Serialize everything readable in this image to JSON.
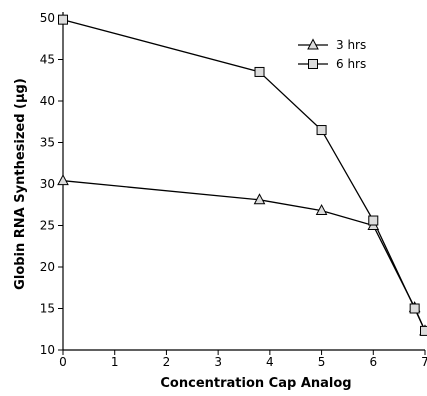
{
  "chart_data": {
    "type": "line",
    "title": "",
    "xlabel": "Concentration Cap Analog",
    "ylabel": "Globin RNA Synthesized (µg)",
    "xlim": [
      0,
      7
    ],
    "ylim": [
      10,
      50
    ],
    "xticks": [
      "0",
      "1",
      "2",
      "3",
      "4",
      "5",
      "6",
      "7"
    ],
    "yticks": [
      "10",
      "15",
      "20",
      "25",
      "30",
      "35",
      "40",
      "45",
      "50"
    ],
    "grid": false,
    "legend_position": "top-right",
    "series": [
      {
        "name": "3 hrs",
        "marker": "triangle",
        "x": [
          0,
          3.8,
          5,
          6,
          6.8,
          7
        ],
        "y": [
          30.4,
          28.1,
          26.8,
          25.0,
          15.1,
          12.3
        ]
      },
      {
        "name": "6 hrs",
        "marker": "square",
        "x": [
          0,
          3.8,
          5,
          6,
          6.8,
          7
        ],
        "y": [
          49.8,
          43.5,
          36.5,
          25.6,
          15.0,
          12.3
        ]
      }
    ],
    "colors": {
      "line": "#000000",
      "marker_fill": "#dcdcdc"
    }
  }
}
